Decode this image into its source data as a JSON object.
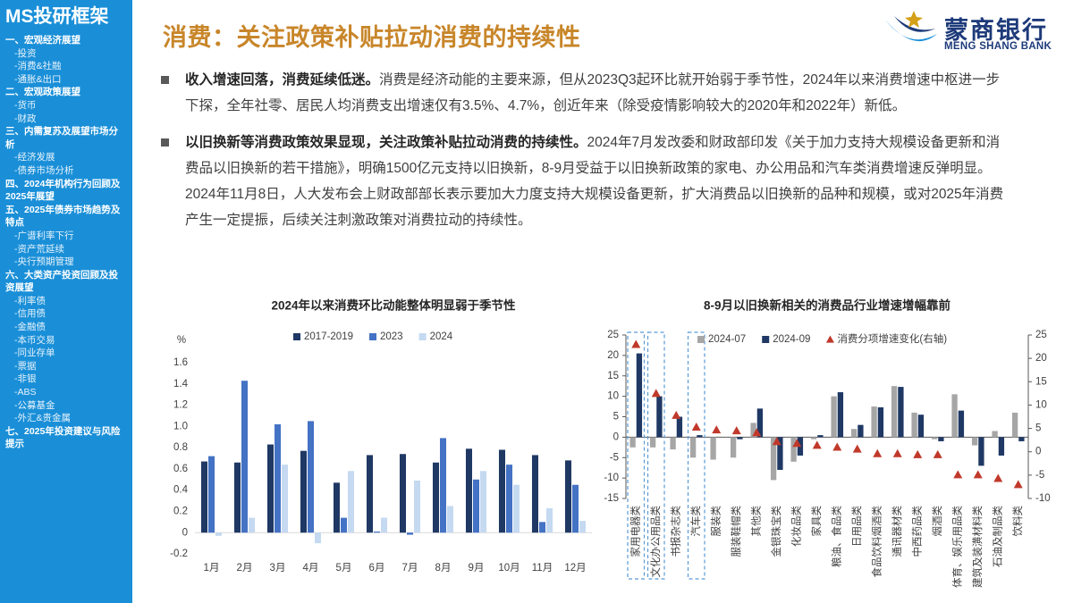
{
  "sidebar": {
    "title": "MS投研框架",
    "items": [
      "一、宏观经济展望",
      "-投资",
      "-消费&社融",
      "-通胀&出口",
      "二、宏观政策展望",
      "-货币",
      "-财政",
      "三、内需复苏及展望市场分析",
      "-经济发展",
      "-债券市场分析",
      "四、2024年机构行为回顾及2025年展望",
      "五、2025年债券市场趋势及特点",
      "-广谱利率下行",
      "-资产荒延续",
      "-央行预期管理",
      "六、大类资产投资回顾及投资展望",
      "-利率债",
      "-信用债",
      "-金融债",
      "-本币交易",
      "-同业存单",
      "-票据",
      "-非银",
      "-ABS",
      "-公募基金",
      "-外汇&贵金属",
      "七、2025年投资建议与风险提示"
    ]
  },
  "header": {
    "title": "消费：关注政策补贴拉动消费的持续性",
    "logo_name": "蒙商银行",
    "logo_subtitle": "MENG SHANG BANK"
  },
  "bullets": [
    {
      "lead": "收入增速回落，消费延续低迷。",
      "text": "消费是经济动能的主要来源，但从2023Q3起环比就开始弱于季节性，2024年以来消费增速中枢进一步下探，全年社零、居民人均消费支出增速仅有3.5%、4.7%，创近年来（除受疫情影响较大的2020年和2022年）新低。"
    },
    {
      "lead": "以旧换新等消费政策效果显现，关注政策补贴拉动消费的持续性。",
      "text": "2024年7月发改委和财政部印发《关于加力支持大规模设备更新和消费品以旧换新的若干措施》，明确1500亿元支持以旧换新，8-9月受益于以旧换新政策的家电、办公用品和汽车类消费增速反弹明显。2024年11月8日，人大发布会上财政部部长表示要加大力度支持大规模设备更新，扩大消费品以旧换新的品种和规模，或对2025年消费产生一定提振，后续关注刺激政策对消费拉动的持续性。"
    }
  ],
  "chart_data": [
    {
      "type": "bar",
      "title": "2024年以来消费环比动能整体明显弱于季节性",
      "y_unit": "%",
      "categories": [
        "1月",
        "2月",
        "3月",
        "4月",
        "5月",
        "6月",
        "7月",
        "8月",
        "9月",
        "10月",
        "11月",
        "12月"
      ],
      "series": [
        {
          "name": "2017-2019",
          "color": "#1f3864",
          "values": [
            0.67,
            0.66,
            0.83,
            0.77,
            0.47,
            0.73,
            0.74,
            0.66,
            0.79,
            0.78,
            0.73,
            0.68
          ]
        },
        {
          "name": "2023",
          "color": "#4472c4",
          "values": [
            0.72,
            1.43,
            1.02,
            1.05,
            0.14,
            0.01,
            -0.02,
            0.89,
            0.5,
            0.64,
            0.1,
            0.45
          ]
        },
        {
          "name": "2024",
          "color": "#c5d9f1",
          "values": [
            -0.03,
            0.14,
            0.64,
            -0.1,
            0.58,
            0.14,
            0.49,
            0.25,
            0.58,
            0.45,
            0.23,
            0.11
          ]
        }
      ],
      "ylim": [
        -0.2,
        1.6
      ],
      "yticks": [
        -0.2,
        0,
        0.2,
        0.4,
        0.6,
        0.8,
        {
          "value": 1,
          "label": "1.0"
        },
        1.2,
        1.4,
        1.6
      ],
      "legend": "top"
    },
    {
      "type": "bar",
      "title": "8-9月以旧换新相关的消费品行业增速增幅靠前",
      "categories": [
        "家用电器类",
        "文化办公用品类",
        "书报杂志类",
        "汽车类",
        "服装类",
        "服装鞋帽类",
        "其他类",
        "金银珠宝类",
        "化妆品类",
        "家具类",
        "粮油、食品类",
        "日用品类",
        "食品饮料烟酒类",
        "通讯器材类",
        "中西药品类",
        "烟酒类",
        "体育、娱乐用品类",
        "建筑及装潢材料类",
        "石油及制品类",
        "饮料类"
      ],
      "series": [
        {
          "name": "2024-07",
          "color": "#a6a6a6",
          "values": [
            -2.5,
            -2.5,
            -3,
            -5,
            -5.5,
            -5,
            3.5,
            -10.5,
            -6,
            -0.5,
            10,
            2,
            7.5,
            12.5,
            6,
            -0.5,
            10.5,
            -2,
            1.5,
            6
          ]
        },
        {
          "name": "2024-09",
          "color": "#1f3864",
          "values": [
            20.5,
            10,
            5,
            0.5,
            0,
            -0.5,
            7,
            -8,
            -4.5,
            0.5,
            11,
            3,
            7.3,
            12.3,
            5.5,
            -1,
            6.5,
            -7,
            -4.5,
            -1
          ]
        },
        {
          "name": "消费分项增速变化(右轴)",
          "color": "#c0392b",
          "type": "scatter",
          "axis": "y2",
          "values": [
            23,
            12.5,
            7.8,
            5.3,
            4.7,
            4.5,
            4.1,
            2.2,
            1.8,
            1.4,
            1,
            0.6,
            -0.4,
            -0.4,
            -0.6,
            -0.6,
            -4.9,
            -4.9,
            -5.7,
            -7
          ]
        }
      ],
      "ylim": [
        -15,
        25
      ],
      "yticks": [
        -15,
        -10,
        -5,
        0,
        5,
        10,
        15,
        20,
        25
      ],
      "y2lim": [
        -10,
        25
      ],
      "y2ticks": [
        -10,
        -5,
        0,
        5,
        10,
        15,
        20,
        25
      ],
      "legend": "top"
    }
  ]
}
